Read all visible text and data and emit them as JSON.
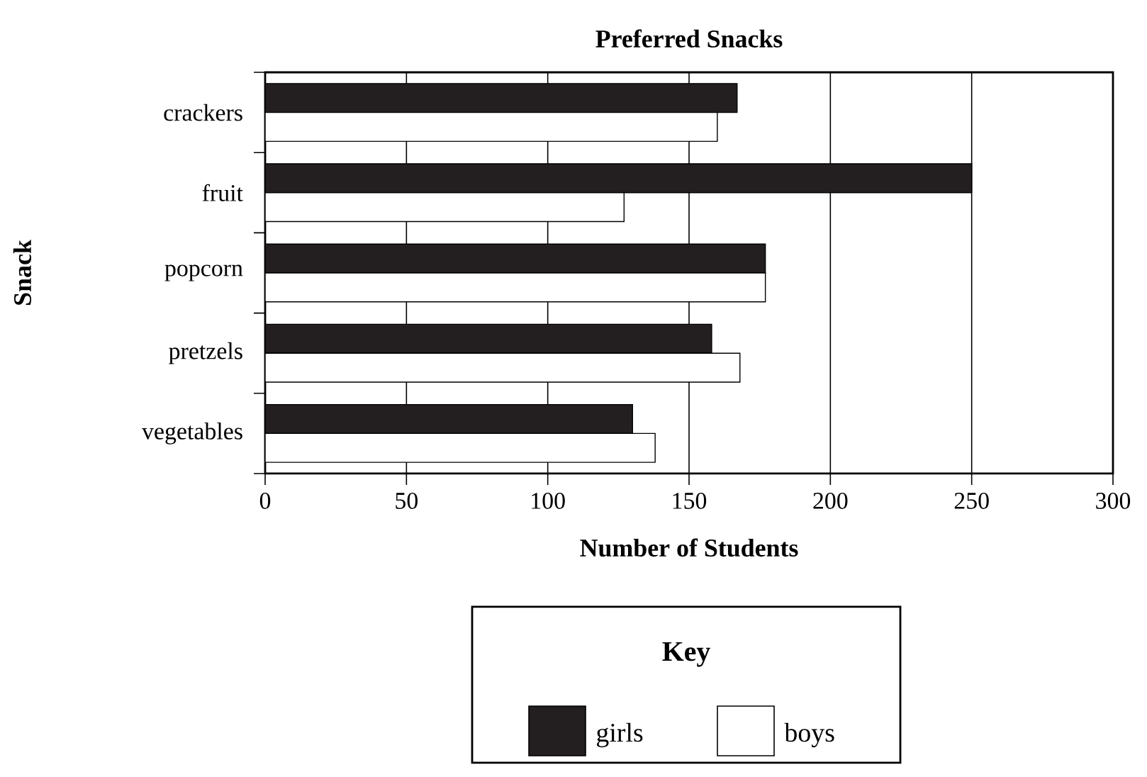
{
  "chart_data": {
    "type": "bar",
    "orientation": "horizontal",
    "title": "Preferred Snacks",
    "xlabel": "Number of Students",
    "ylabel": "Snack",
    "legend_title": "Key",
    "categories": [
      "crackers",
      "fruit",
      "popcorn",
      "pretzels",
      "vegetables"
    ],
    "series": [
      {
        "name": "girls",
        "color": "#231f20",
        "values": [
          167,
          250,
          177,
          158,
          130
        ]
      },
      {
        "name": "boys",
        "color": "#ffffff",
        "values": [
          160,
          127,
          177,
          168,
          138
        ]
      }
    ],
    "xlim": [
      0,
      300
    ],
    "xticks": [
      0,
      50,
      100,
      150,
      200,
      250,
      300
    ],
    "grid": "x",
    "legend": "bottom"
  }
}
